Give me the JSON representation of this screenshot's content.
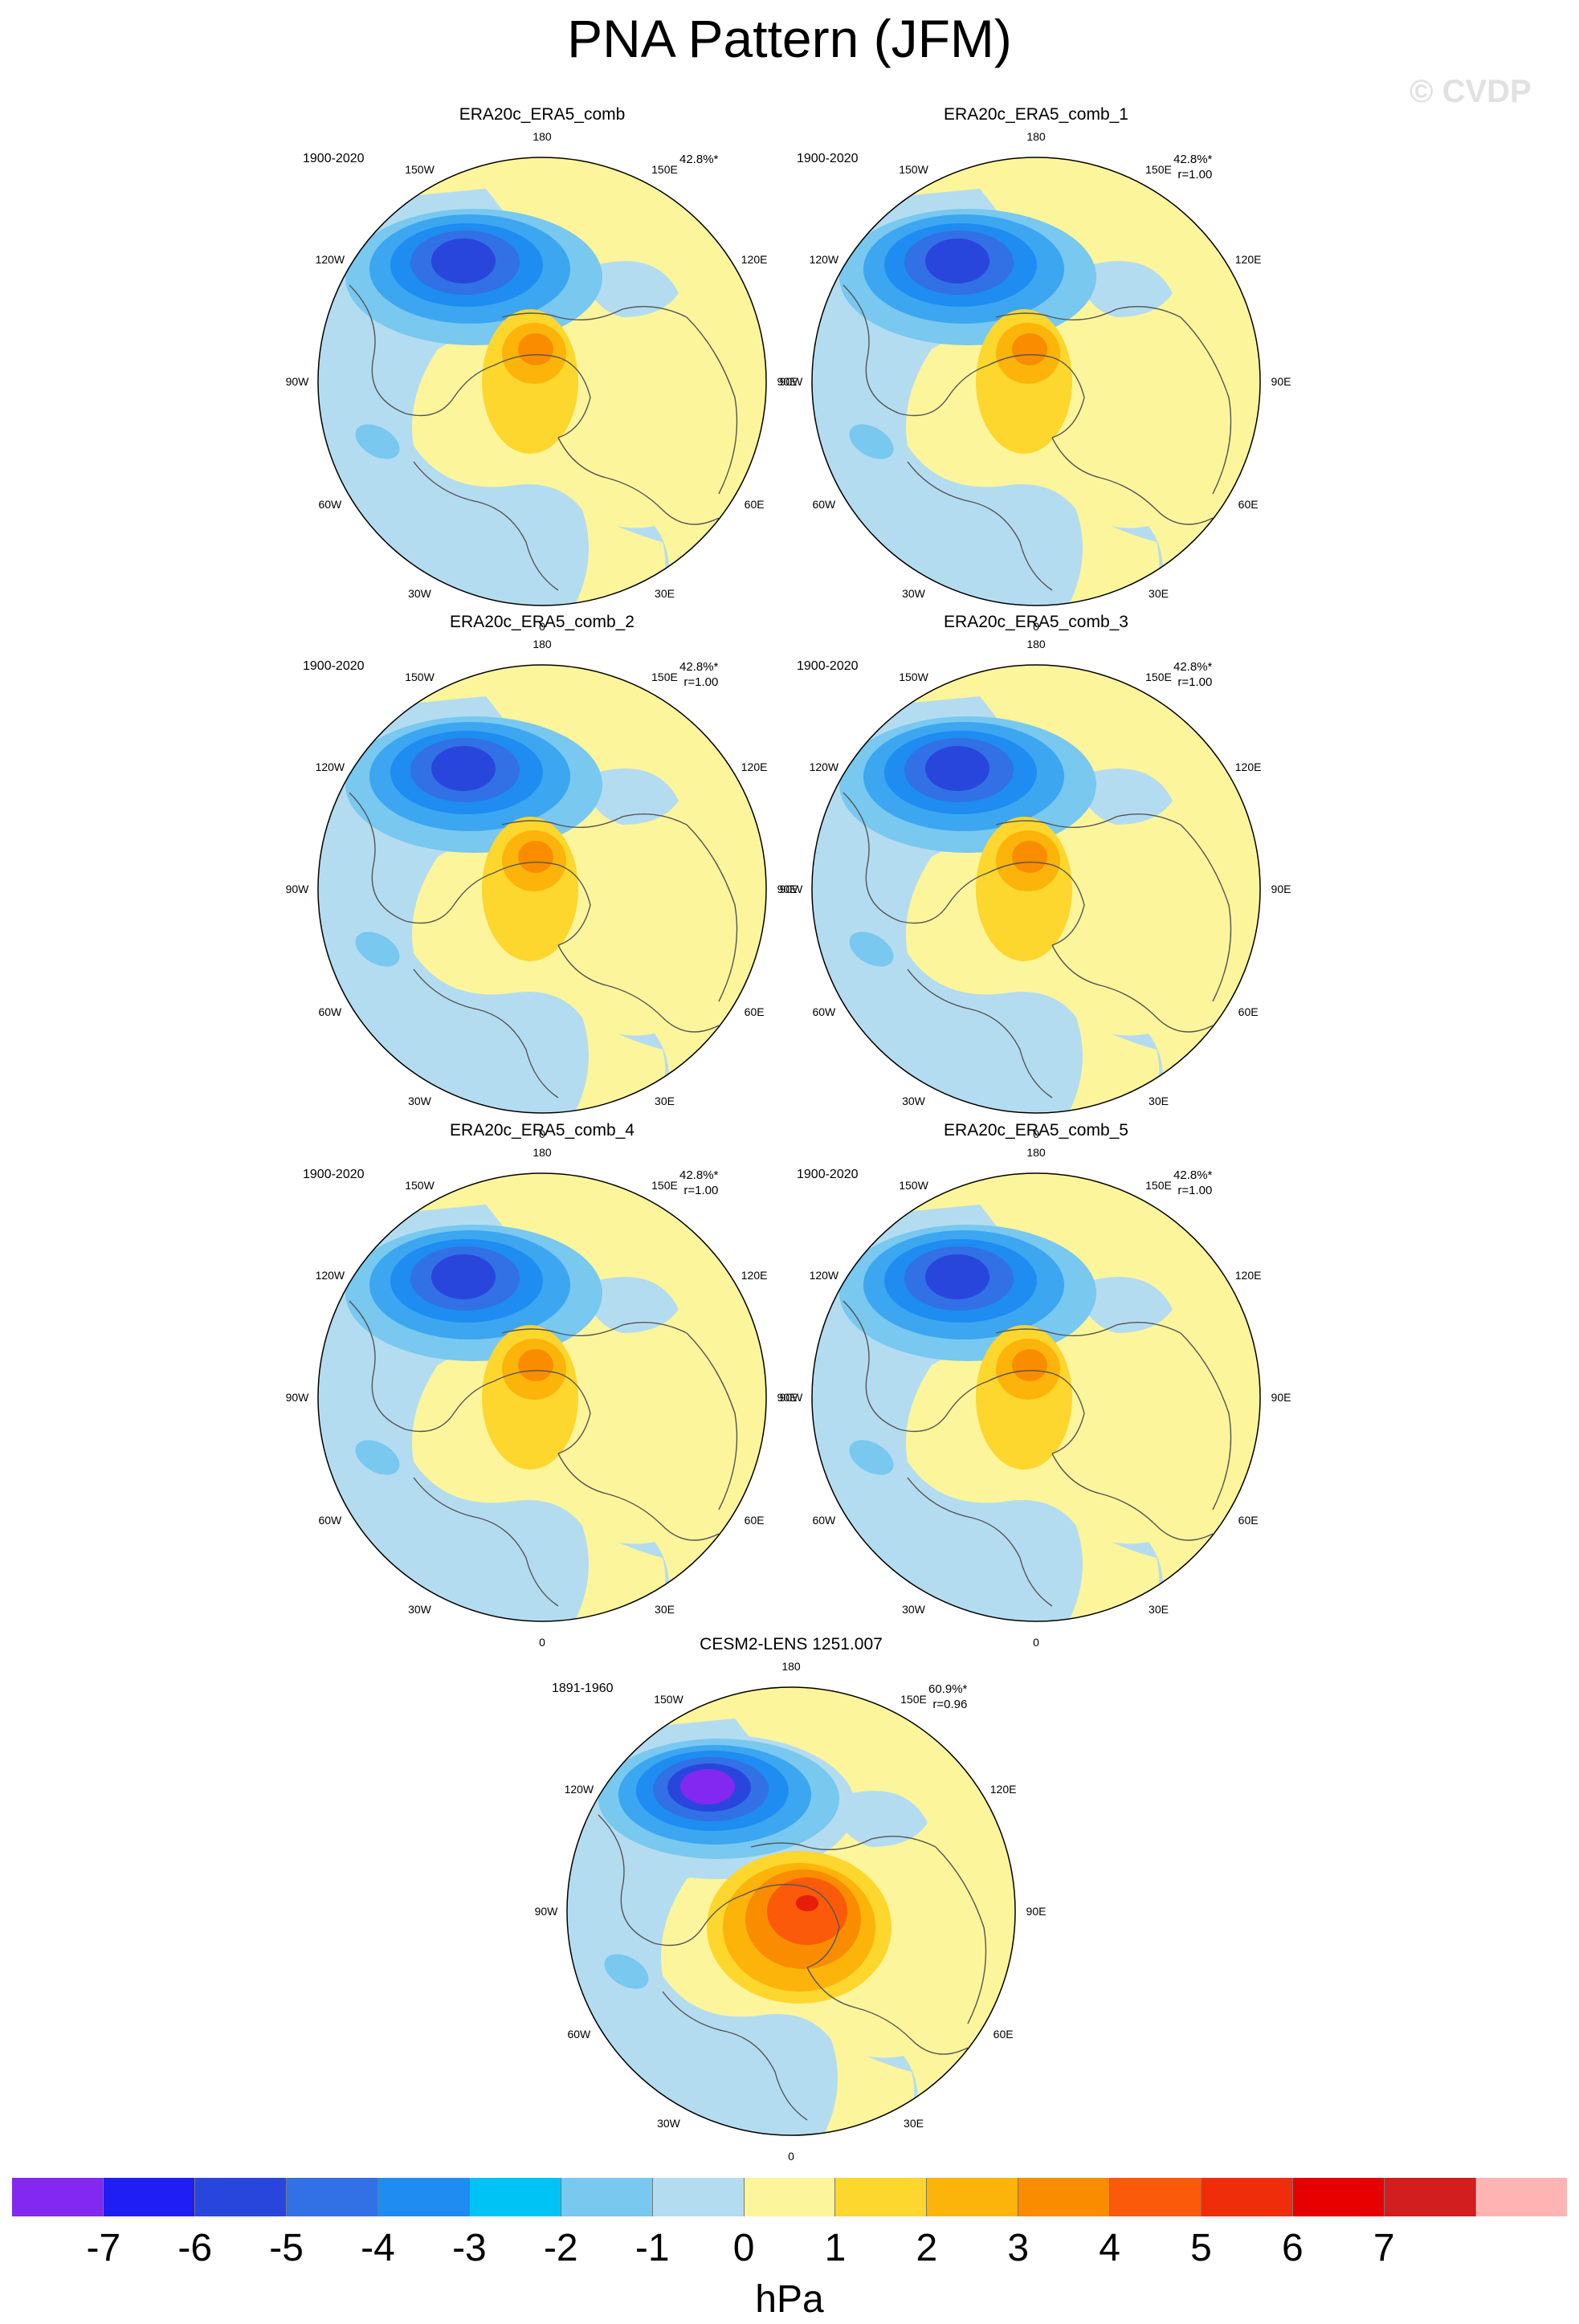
{
  "title": "PNA Pattern (JFM)",
  "watermark": "© CVDP",
  "colors": {
    "ocean_neg": "#b4dcf0",
    "land_pos": "#fdf59b",
    "n1": "#78c8f0",
    "n2": "#3ca6f0",
    "n3": "#1e8cf0",
    "n4": "#3270e6",
    "n5": "#2846dc",
    "n6": "#1e1ef5",
    "n7": "#8228f0",
    "p1": "#fdd62e",
    "p2": "#fcb40a",
    "p3": "#fa8c00",
    "p4": "#fa5a0a",
    "p5": "#e61e0a",
    "coast": "#555555"
  },
  "longitude_labels": [
    "180",
    "150E",
    "120E",
    "90E",
    "60E",
    "30E",
    "0",
    "30W",
    "60W",
    "90W",
    "120W",
    "150W"
  ],
  "panels": [
    {
      "title": "ERA20c_ERA5_comb",
      "years": "1900-2020",
      "pct": "42.8%*",
      "r": ""
    },
    {
      "title": "ERA20c_ERA5_comb_1",
      "years": "1900-2020",
      "pct": "42.8%*",
      "r": "r=1.00"
    },
    {
      "title": "ERA20c_ERA5_comb_2",
      "years": "1900-2020",
      "pct": "42.8%*",
      "r": "r=1.00"
    },
    {
      "title": "ERA20c_ERA5_comb_3",
      "years": "1900-2020",
      "pct": "42.8%*",
      "r": "r=1.00"
    },
    {
      "title": "ERA20c_ERA5_comb_4",
      "years": "1900-2020",
      "pct": "42.8%*",
      "r": "r=1.00"
    },
    {
      "title": "ERA20c_ERA5_comb_5",
      "years": "1900-2020",
      "pct": "42.8%*",
      "r": "r=1.00"
    },
    {
      "title": "CESM2-LENS 1251.007",
      "years": "1891-1960",
      "pct": "60.9%*",
      "r": "r=0.96"
    }
  ],
  "colorbar": {
    "colors": [
      "#8228f0",
      "#1e1ef5",
      "#2846dc",
      "#3270e6",
      "#1e8cf0",
      "#00c3f5",
      "#78c8f0",
      "#b4dcf0",
      "#fdf59b",
      "#fdd62e",
      "#fcb40a",
      "#fa8c00",
      "#fa5a0a",
      "#f02d0a",
      "#e60000",
      "#d21e1e",
      "#ffb4b4"
    ],
    "labels": [
      "-7",
      "-6",
      "-5",
      "-4",
      "-3",
      "-2",
      "-1",
      "0",
      "1",
      "2",
      "3",
      "4",
      "5",
      "6",
      "7"
    ],
    "units": "hPa"
  }
}
